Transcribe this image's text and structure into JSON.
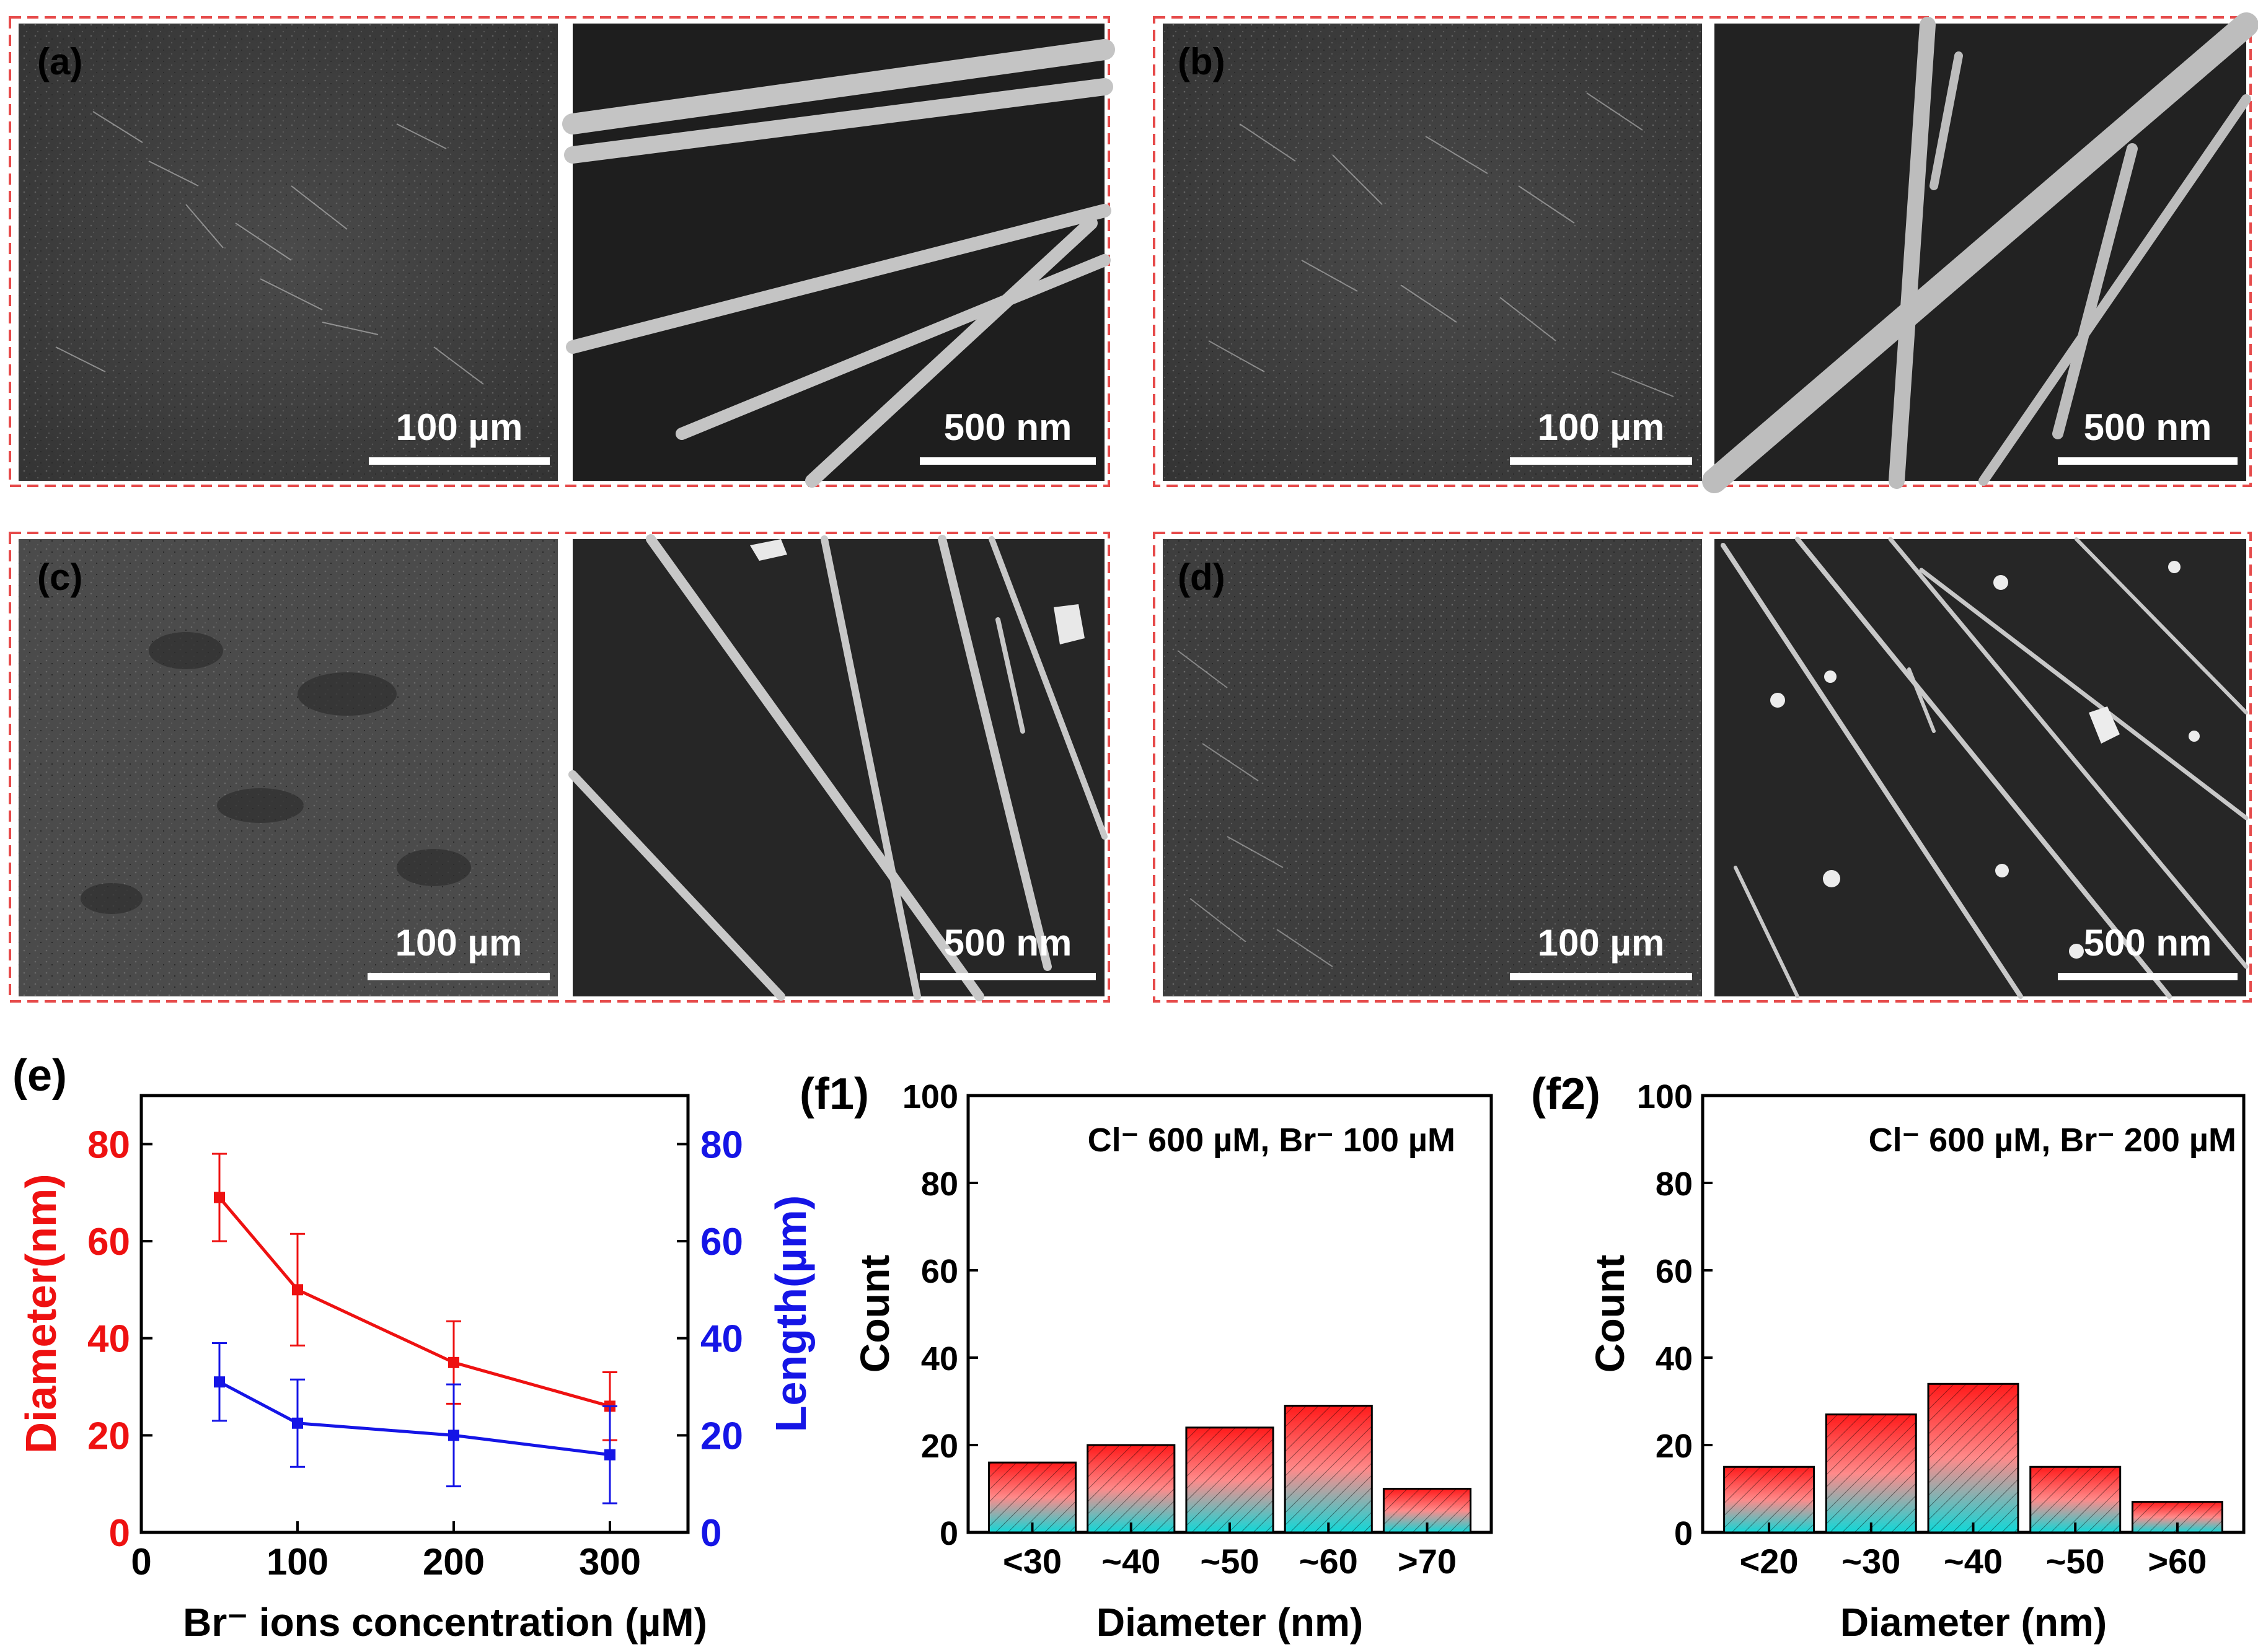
{
  "panels": [
    {
      "label": "(a)",
      "left_scale": "100 µm",
      "right_scale": "500 nm"
    },
    {
      "label": "(b)",
      "left_scale": "100 µm",
      "right_scale": "500 nm"
    },
    {
      "label": "(c)",
      "left_scale": "100 µm",
      "right_scale": "500 nm"
    },
    {
      "label": "(d)",
      "left_scale": "100 µm",
      "right_scale": "500 nm"
    }
  ],
  "colors": {
    "diameter": "#ee1111",
    "length": "#1515e6",
    "panel_border": "#e64a4a",
    "sem_bg": "#3a3a3a",
    "bar_top": "#ff1a1a",
    "bar_bottom": "#10d8d8"
  },
  "chart_data": [
    {
      "id": "e",
      "label": "(e)",
      "type": "line",
      "xlabel": "Br⁻ ions concentration (µM)",
      "ylabel_left": "Diameter(nm)",
      "ylabel_right": "Length(µm)",
      "xlim": [
        0,
        350
      ],
      "ylim_left": [
        0,
        90
      ],
      "ylim_right": [
        0,
        90
      ],
      "xticks": [
        0,
        100,
        200,
        300
      ],
      "yticks_left": [
        0,
        20,
        40,
        60,
        80
      ],
      "yticks_right": [
        0,
        20,
        40,
        60,
        80
      ],
      "x": [
        50,
        100,
        200,
        300
      ],
      "series": [
        {
          "axis": "left",
          "values": [
            69,
            50,
            35,
            26
          ],
          "errors": [
            9,
            11.5,
            8.5,
            7
          ]
        },
        {
          "axis": "right",
          "values": [
            31,
            22.5,
            20,
            16
          ],
          "errors": [
            8,
            9,
            10.5,
            10
          ]
        }
      ]
    },
    {
      "id": "f1",
      "label": "(f1)",
      "type": "bar",
      "annotation": "Cl⁻ 600 µM, Br⁻ 100 µM",
      "categories": [
        "<30",
        "~40",
        "~50",
        "~60",
        ">70"
      ],
      "values": [
        16,
        20,
        24,
        29,
        10
      ],
      "xlabel": "Diameter (nm)",
      "ylabel": "Count",
      "ylim": [
        0,
        100
      ],
      "yticks": [
        0,
        20,
        40,
        60,
        80,
        100
      ]
    },
    {
      "id": "f2",
      "label": "(f2)",
      "type": "bar",
      "annotation": "Cl⁻ 600 µM, Br⁻ 200 µM",
      "categories": [
        "<20",
        "~30",
        "~40",
        "~50",
        ">60"
      ],
      "values": [
        15,
        27,
        34,
        15,
        7
      ],
      "xlabel": "Diameter (nm)",
      "ylabel": "Count",
      "ylim": [
        0,
        100
      ],
      "yticks": [
        0,
        20,
        40,
        60,
        80,
        100
      ]
    }
  ]
}
